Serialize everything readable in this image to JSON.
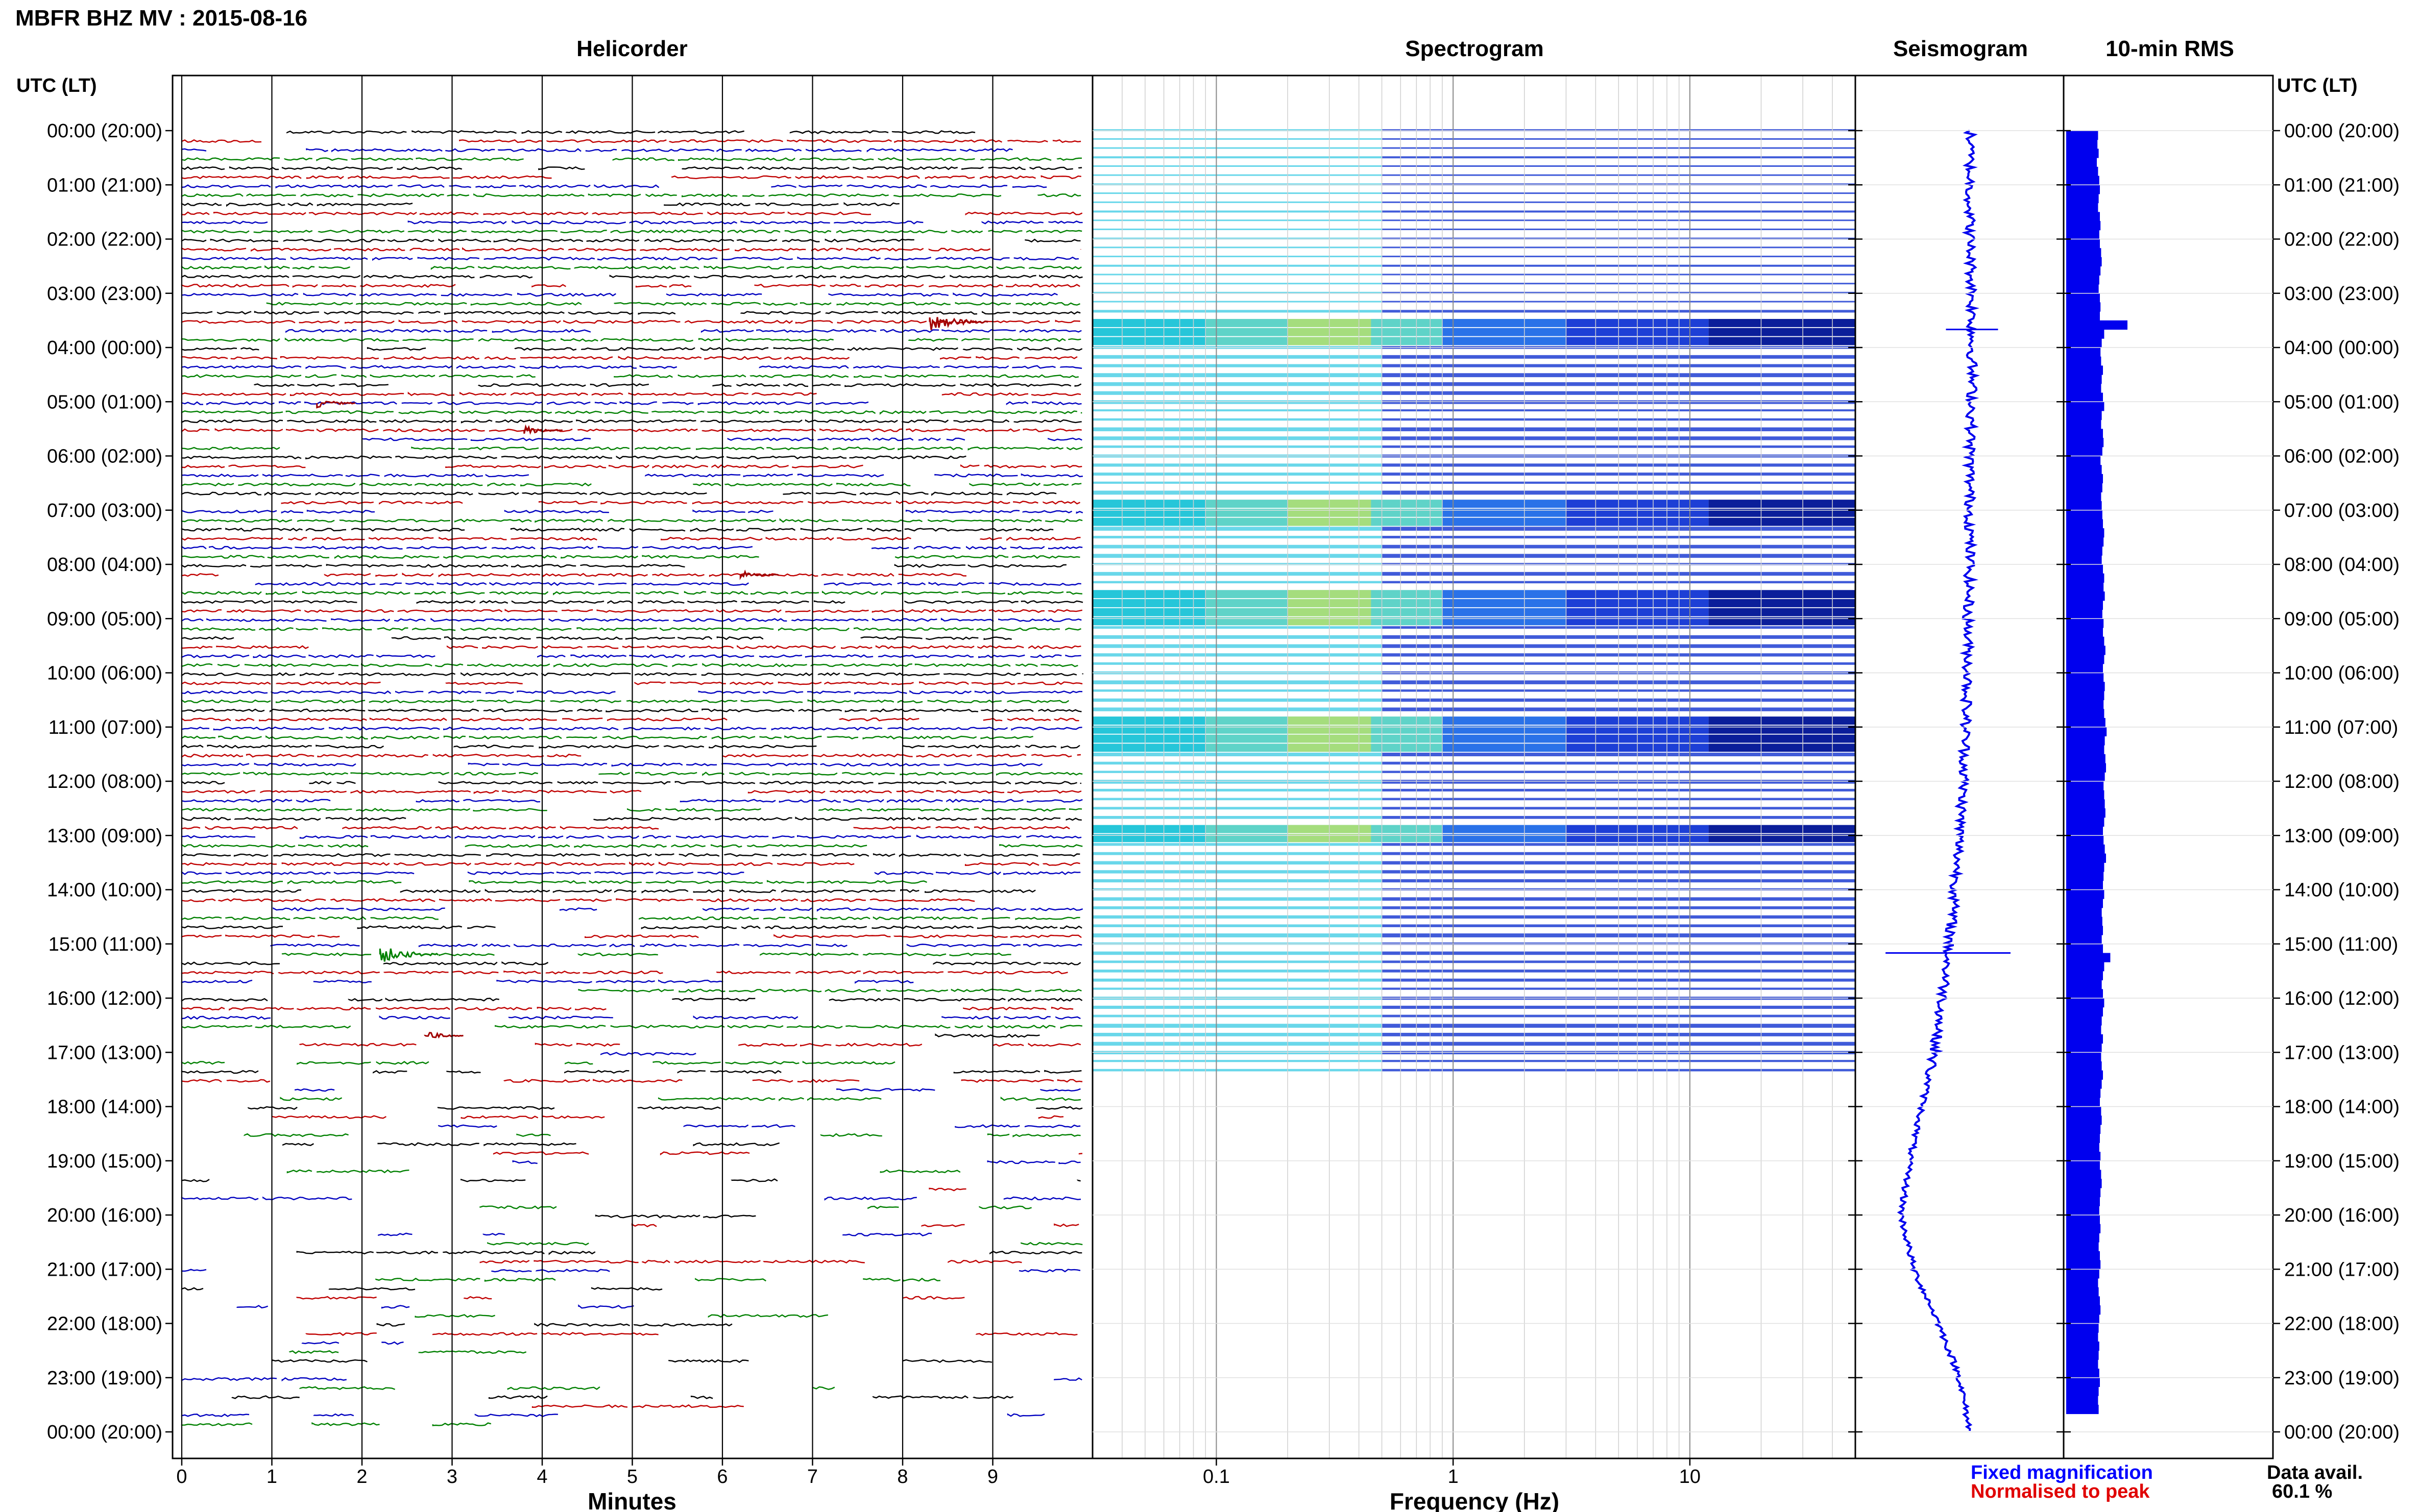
{
  "header": {
    "title": "MBFR BHZ MV : 2015-08-16",
    "utc_label_left": "UTC (LT)",
    "utc_label_right": "UTC (LT)"
  },
  "panels": {
    "helicorder": "Helicorder",
    "spectrogram": "Spectrogram",
    "seismogram": "Seismogram",
    "rms": "10-min RMS"
  },
  "axes": {
    "minutes_label": "Minutes",
    "frequency_label": "Frequency (Hz)"
  },
  "legend": {
    "fixed": "Fixed magnification",
    "fixed_color": "#0000ff",
    "normalised": "Normalised to peak",
    "normalised_color": "#e00000"
  },
  "availability": {
    "label": "Data avail.",
    "value": "60.1 %"
  },
  "colors": {
    "trace": [
      "#000000",
      "#c00000",
      "#0000c0",
      "#008000"
    ],
    "rms_bar": "#0000ee",
    "seismo": "#0000ee"
  },
  "chart_data": [
    {
      "type": "line",
      "name": "helicorder",
      "title": "Helicorder",
      "xlabel": "Minutes",
      "x_ticks": [
        "0",
        "1",
        "2",
        "3",
        "4",
        "5",
        "6",
        "7",
        "8",
        "9"
      ],
      "xlim": [
        0,
        10
      ],
      "y_ticks": [
        "00:00 (20:00)",
        "01:00 (21:00)",
        "02:00 (22:00)",
        "03:00 (23:00)",
        "04:00 (00:00)",
        "05:00 (01:00)",
        "06:00 (02:00)",
        "07:00 (03:00)",
        "08:00 (04:00)",
        "09:00 (05:00)",
        "10:00 (06:00)",
        "11:00 (07:00)",
        "12:00 (08:00)",
        "13:00 (09:00)",
        "14:00 (10:00)",
        "15:00 (11:00)",
        "16:00 (12:00)",
        "17:00 (13:00)",
        "18:00 (14:00)",
        "19:00 (15:00)",
        "20:00 (16:00)",
        "21:00 (17:00)",
        "22:00 (18:00)",
        "23:00 (19:00)",
        "00:00 (20:00)"
      ],
      "rows_per_hour": 6,
      "events": [
        {
          "time_utc": "03:30",
          "minute": 8.3,
          "amplitude": 3
        },
        {
          "time_utc": "05:00",
          "minute": 1.5,
          "amplitude": 1.5
        },
        {
          "time_utc": "05:30",
          "minute": 3.8,
          "amplitude": 1.5
        },
        {
          "time_utc": "08:10",
          "minute": 6.2,
          "amplitude": 1.5
        },
        {
          "time_utc": "15:10",
          "minute": 2.2,
          "amplitude": 3
        },
        {
          "time_utc": "16:40",
          "minute": 2.7,
          "amplitude": 1.5
        }
      ]
    },
    {
      "type": "heatmap",
      "name": "spectrogram",
      "title": "Spectrogram",
      "xlabel": "Frequency (Hz)",
      "x_scale": "log",
      "xlim": [
        0.03,
        50
      ],
      "x_ticks": [
        "0.1",
        "1",
        "10"
      ],
      "intense_bands_utc": [
        {
          "start": "03:30",
          "end": "03:50"
        },
        {
          "start": "06:50",
          "end": "07:10"
        },
        {
          "start": "08:30",
          "end": "09:00"
        },
        {
          "start": "10:50",
          "end": "11:20"
        },
        {
          "start": "12:50",
          "end": "13:00"
        }
      ]
    },
    {
      "type": "line",
      "name": "seismogram",
      "title": "Seismogram",
      "baseline_drift": [
        0.55,
        0.55,
        0.55,
        0.56,
        0.56,
        0.56,
        0.55,
        0.55,
        0.55,
        0.54,
        0.54,
        0.53,
        0.52,
        0.5,
        0.48,
        0.45,
        0.42,
        0.38,
        0.32,
        0.26,
        0.22,
        0.28,
        0.4,
        0.5,
        0.55
      ],
      "spikes_utc": [
        {
          "time": "03:40",
          "width": 0.25
        },
        {
          "time": "15:10",
          "width": 0.6
        }
      ]
    },
    {
      "type": "bar",
      "name": "rms",
      "title": "10-min RMS",
      "orientation": "horizontal",
      "categories_per_hour": 6,
      "values_relative": [
        0.52,
        0.51,
        0.53,
        0.5,
        0.52,
        0.54,
        0.55,
        0.53,
        0.52,
        0.55,
        0.56,
        0.54,
        0.55,
        0.57,
        0.58,
        0.56,
        0.54,
        0.53,
        0.55,
        0.56,
        0.55,
        1.0,
        0.62,
        0.58,
        0.56,
        0.57,
        0.6,
        0.58,
        0.57,
        0.6,
        0.62,
        0.58,
        0.57,
        0.6,
        0.61,
        0.59,
        0.56,
        0.58,
        0.6,
        0.59,
        0.57,
        0.58,
        0.59,
        0.6,
        0.62,
        0.61,
        0.59,
        0.58,
        0.6,
        0.62,
        0.61,
        0.63,
        0.6,
        0.59,
        0.61,
        0.6,
        0.62,
        0.64,
        0.62,
        0.6,
        0.61,
        0.63,
        0.62,
        0.61,
        0.62,
        0.64,
        0.66,
        0.63,
        0.62,
        0.64,
        0.65,
        0.63,
        0.61,
        0.62,
        0.63,
        0.64,
        0.62,
        0.6,
        0.61,
        0.63,
        0.65,
        0.62,
        0.61,
        0.6,
        0.62,
        0.6,
        0.58,
        0.59,
        0.6,
        0.58,
        0.6,
        0.72,
        0.62,
        0.6,
        0.58,
        0.6,
        0.62,
        0.6,
        0.58,
        0.57,
        0.6,
        0.58,
        0.57,
        0.58,
        0.6,
        0.58,
        0.56,
        0.55,
        0.57,
        0.58,
        0.56,
        0.55,
        0.54,
        0.56,
        0.55,
        0.57,
        0.58,
        0.56,
        0.55,
        0.54,
        0.55,
        0.56,
        0.54,
        0.53,
        0.55,
        0.56,
        0.54,
        0.52,
        0.53,
        0.55,
        0.56,
        0.54,
        0.53,
        0.52,
        0.54,
        0.53,
        0.52,
        0.54,
        0.55,
        0.53,
        0.52,
        0.53
      ]
    }
  ]
}
